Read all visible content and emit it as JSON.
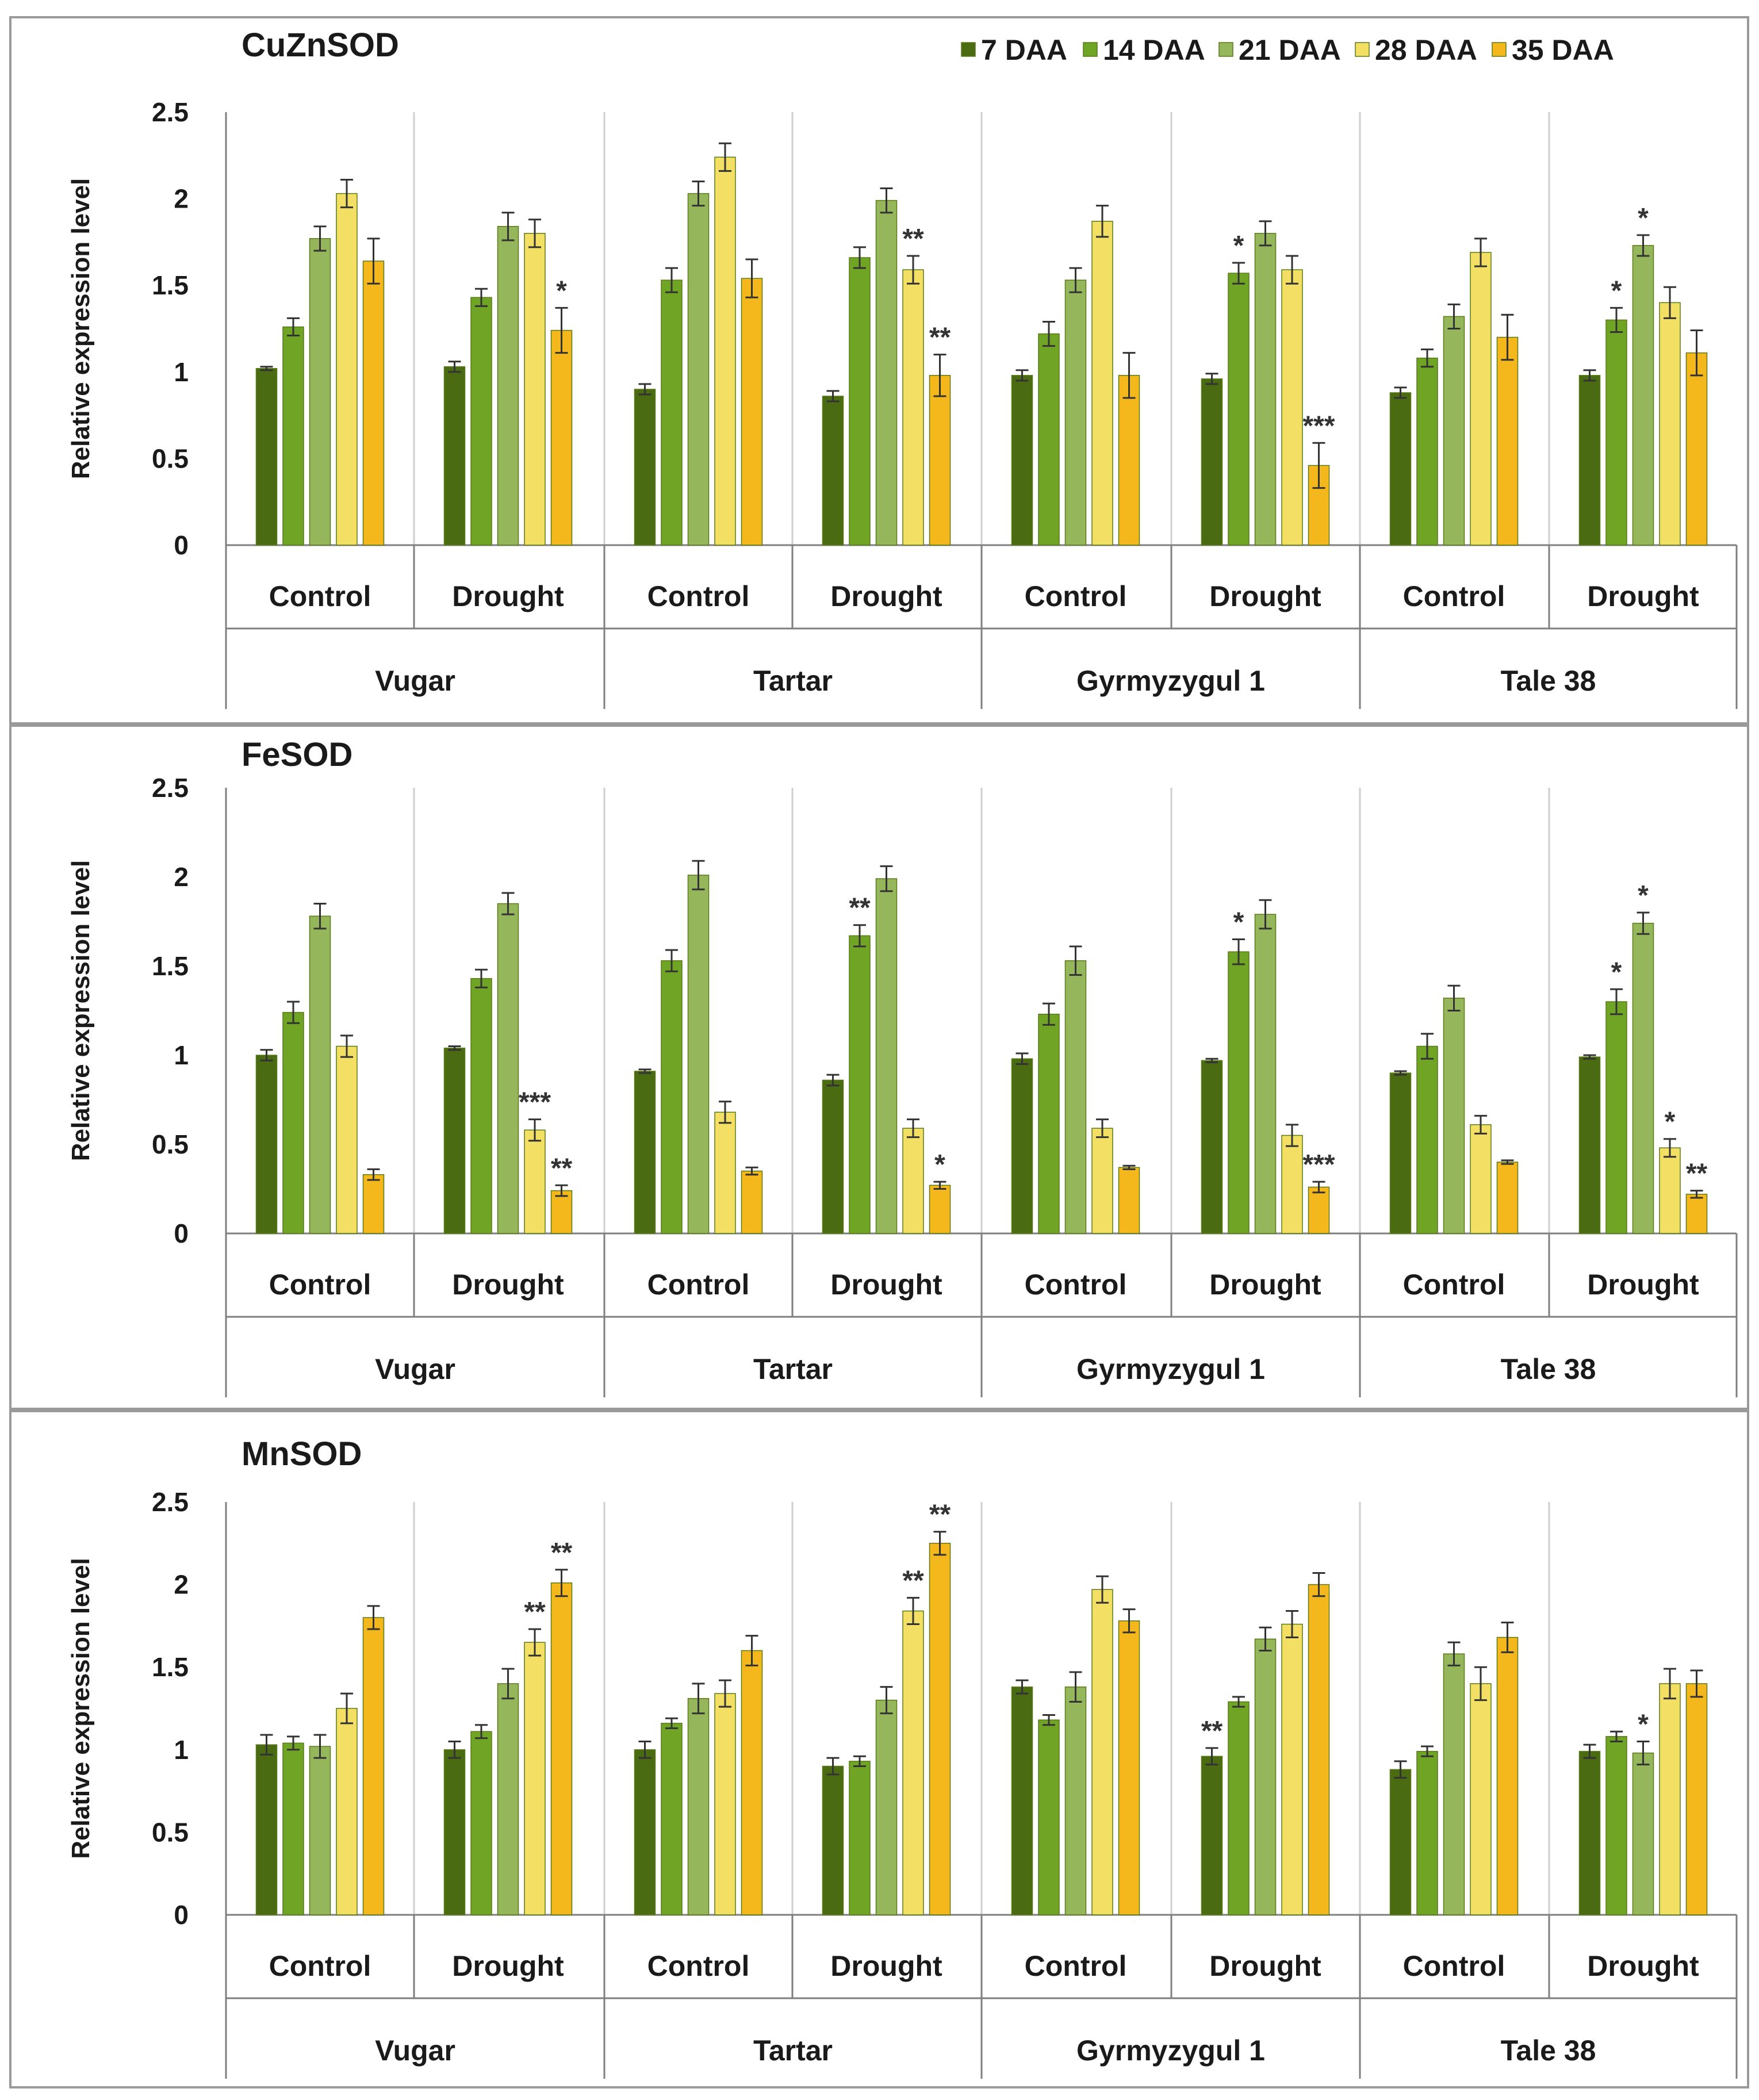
{
  "legend": [
    {
      "label": "7 DAA",
      "color": "#4a6b12"
    },
    {
      "label": "14 DAA",
      "color": "#70a424"
    },
    {
      "label": "21 DAA",
      "color": "#95b65a"
    },
    {
      "label": "28 DAA",
      "color": "#f2df63"
    },
    {
      "label": "35 DAA",
      "color": "#f4b81c"
    }
  ],
  "chart_data": [
    {
      "type": "bar",
      "title": "CuZnSOD",
      "ylabel": "Relative expression level",
      "ylim": [
        0,
        2.5
      ],
      "yticks": [
        "0",
        "0.5",
        "1",
        "1.5",
        "2",
        "2.5"
      ],
      "cultivars": [
        "Vugar",
        "Tartar",
        "Gyrmyzygul 1",
        "Tale 38"
      ],
      "conditions": [
        "Control",
        "Drought"
      ],
      "series_names": [
        "7 DAA",
        "14 DAA",
        "21 DAA",
        "28 DAA",
        "35 DAA"
      ],
      "groups": [
        {
          "cultivar": "Vugar",
          "condition": "Control",
          "values": [
            1.02,
            1.26,
            1.77,
            2.03,
            1.64
          ],
          "errors": [
            0.01,
            0.05,
            0.07,
            0.08,
            0.13
          ],
          "sig": [
            "",
            "",
            "",
            "",
            ""
          ]
        },
        {
          "cultivar": "Vugar",
          "condition": "Drought",
          "values": [
            1.03,
            1.43,
            1.84,
            1.8,
            1.24
          ],
          "errors": [
            0.03,
            0.05,
            0.08,
            0.08,
            0.13
          ],
          "sig": [
            "",
            "",
            "",
            "",
            "*"
          ]
        },
        {
          "cultivar": "Tartar",
          "condition": "Control",
          "values": [
            0.9,
            1.53,
            2.03,
            2.24,
            1.54
          ],
          "errors": [
            0.03,
            0.07,
            0.07,
            0.08,
            0.11
          ],
          "sig": [
            "",
            "",
            "",
            "",
            ""
          ]
        },
        {
          "cultivar": "Tartar",
          "condition": "Drought",
          "values": [
            0.86,
            1.66,
            1.99,
            1.59,
            0.98
          ],
          "errors": [
            0.03,
            0.06,
            0.07,
            0.08,
            0.12
          ],
          "sig": [
            "",
            "",
            "",
            "**",
            "**"
          ]
        },
        {
          "cultivar": "Gyrmyzygul 1",
          "condition": "Control",
          "values": [
            0.98,
            1.22,
            1.53,
            1.87,
            0.98
          ],
          "errors": [
            0.03,
            0.07,
            0.07,
            0.09,
            0.13
          ],
          "sig": [
            "",
            "",
            "",
            "",
            ""
          ]
        },
        {
          "cultivar": "Gyrmyzygul 1",
          "condition": "Drought",
          "values": [
            0.96,
            1.57,
            1.8,
            1.59,
            0.46
          ],
          "errors": [
            0.03,
            0.06,
            0.07,
            0.08,
            0.13
          ],
          "sig": [
            "",
            "*",
            "",
            "",
            "***"
          ]
        },
        {
          "cultivar": "Tale 38",
          "condition": "Control",
          "values": [
            0.88,
            1.08,
            1.32,
            1.69,
            1.2
          ],
          "errors": [
            0.03,
            0.05,
            0.07,
            0.08,
            0.13
          ],
          "sig": [
            "",
            "",
            "",
            "",
            ""
          ]
        },
        {
          "cultivar": "Tale 38",
          "condition": "Drought",
          "values": [
            0.98,
            1.3,
            1.73,
            1.4,
            1.11
          ],
          "errors": [
            0.03,
            0.07,
            0.06,
            0.09,
            0.13
          ],
          "sig": [
            "",
            "*",
            "*",
            "",
            ""
          ]
        }
      ]
    },
    {
      "type": "bar",
      "title": "FeSOD",
      "ylabel": "Relative expression level",
      "ylim": [
        0,
        2.5
      ],
      "yticks": [
        "0",
        "0.5",
        "1",
        "1.5",
        "2",
        "2.5"
      ],
      "cultivars": [
        "Vugar",
        "Tartar",
        "Gyrmyzygul 1",
        "Tale 38"
      ],
      "conditions": [
        "Control",
        "Drought"
      ],
      "series_names": [
        "7 DAA",
        "14 DAA",
        "21 DAA",
        "28 DAA",
        "35 DAA"
      ],
      "groups": [
        {
          "cultivar": "Vugar",
          "condition": "Control",
          "values": [
            1.0,
            1.24,
            1.78,
            1.05,
            0.33
          ],
          "errors": [
            0.03,
            0.06,
            0.07,
            0.06,
            0.03
          ],
          "sig": [
            "",
            "",
            "",
            "",
            ""
          ]
        },
        {
          "cultivar": "Vugar",
          "condition": "Drought",
          "values": [
            1.04,
            1.43,
            1.85,
            0.58,
            0.24
          ],
          "errors": [
            0.01,
            0.05,
            0.06,
            0.06,
            0.03
          ],
          "sig": [
            "",
            "",
            "",
            "***",
            "**"
          ]
        },
        {
          "cultivar": "Tartar",
          "condition": "Control",
          "values": [
            0.91,
            1.53,
            2.01,
            0.68,
            0.35
          ],
          "errors": [
            0.01,
            0.06,
            0.08,
            0.06,
            0.02
          ],
          "sig": [
            "",
            "",
            "",
            "",
            ""
          ]
        },
        {
          "cultivar": "Tartar",
          "condition": "Drought",
          "values": [
            0.86,
            1.67,
            1.99,
            0.59,
            0.27
          ],
          "errors": [
            0.03,
            0.06,
            0.07,
            0.05,
            0.02
          ],
          "sig": [
            "",
            "**",
            "",
            "",
            "*"
          ]
        },
        {
          "cultivar": "Gyrmyzygul 1",
          "condition": "Control",
          "values": [
            0.98,
            1.23,
            1.53,
            0.59,
            0.37
          ],
          "errors": [
            0.03,
            0.06,
            0.08,
            0.05,
            0.01
          ],
          "sig": [
            "",
            "",
            "",
            "",
            ""
          ]
        },
        {
          "cultivar": "Gyrmyzygul 1",
          "condition": "Drought",
          "values": [
            0.97,
            1.58,
            1.79,
            0.55,
            0.26
          ],
          "errors": [
            0.01,
            0.07,
            0.08,
            0.06,
            0.03
          ],
          "sig": [
            "",
            "*",
            "",
            "",
            "***"
          ]
        },
        {
          "cultivar": "Tale 38",
          "condition": "Control",
          "values": [
            0.9,
            1.05,
            1.32,
            0.61,
            0.4
          ],
          "errors": [
            0.01,
            0.07,
            0.07,
            0.05,
            0.01
          ],
          "sig": [
            "",
            "",
            "",
            "",
            ""
          ]
        },
        {
          "cultivar": "Tale 38",
          "condition": "Drought",
          "values": [
            0.99,
            1.3,
            1.74,
            0.48,
            0.22
          ],
          "errors": [
            0.01,
            0.07,
            0.06,
            0.05,
            0.02
          ],
          "sig": [
            "",
            "*",
            "*",
            "*",
            "**"
          ]
        }
      ]
    },
    {
      "type": "bar",
      "title": "MnSOD",
      "ylabel": "Relative expression level",
      "ylim": [
        0,
        2.5
      ],
      "yticks": [
        "0",
        "0.5",
        "1",
        "1.5",
        "2",
        "2.5"
      ],
      "cultivars": [
        "Vugar",
        "Tartar",
        "Gyrmyzygul 1",
        "Tale 38"
      ],
      "conditions": [
        "Control",
        "Drought"
      ],
      "series_names": [
        "7 DAA",
        "14 DAA",
        "21 DAA",
        "28 DAA",
        "35 DAA"
      ],
      "groups": [
        {
          "cultivar": "Vugar",
          "condition": "Control",
          "values": [
            1.03,
            1.04,
            1.02,
            1.25,
            1.8
          ],
          "errors": [
            0.06,
            0.04,
            0.07,
            0.09,
            0.07
          ],
          "sig": [
            "",
            "",
            "",
            "",
            ""
          ]
        },
        {
          "cultivar": "Vugar",
          "condition": "Drought",
          "values": [
            1.0,
            1.11,
            1.4,
            1.65,
            2.01
          ],
          "errors": [
            0.05,
            0.04,
            0.09,
            0.08,
            0.08
          ],
          "sig": [
            "",
            "",
            "",
            "**",
            "**"
          ]
        },
        {
          "cultivar": "Tartar",
          "condition": "Control",
          "values": [
            1.0,
            1.16,
            1.31,
            1.34,
            1.6
          ],
          "errors": [
            0.05,
            0.03,
            0.09,
            0.08,
            0.09
          ],
          "sig": [
            "",
            "",
            "",
            "",
            ""
          ]
        },
        {
          "cultivar": "Tartar",
          "condition": "Drought",
          "values": [
            0.9,
            0.93,
            1.3,
            1.84,
            2.25
          ],
          "errors": [
            0.05,
            0.03,
            0.08,
            0.08,
            0.07
          ],
          "sig": [
            "",
            "",
            "",
            "**",
            "**"
          ]
        },
        {
          "cultivar": "Gyrmyzygul 1",
          "condition": "Control",
          "values": [
            1.38,
            1.18,
            1.38,
            1.97,
            1.78
          ],
          "errors": [
            0.04,
            0.03,
            0.09,
            0.08,
            0.07
          ],
          "sig": [
            "",
            "",
            "",
            "",
            ""
          ]
        },
        {
          "cultivar": "Gyrmyzygul 1",
          "condition": "Drought",
          "values": [
            0.96,
            1.29,
            1.67,
            1.76,
            2.0
          ],
          "errors": [
            0.05,
            0.03,
            0.07,
            0.08,
            0.07
          ],
          "sig": [
            "**",
            "",
            "",
            "",
            ""
          ]
        },
        {
          "cultivar": "Tale 38",
          "condition": "Control",
          "values": [
            0.88,
            0.99,
            1.58,
            1.4,
            1.68
          ],
          "errors": [
            0.05,
            0.03,
            0.07,
            0.1,
            0.09
          ],
          "sig": [
            "",
            "",
            "",
            "",
            ""
          ]
        },
        {
          "cultivar": "Tale 38",
          "condition": "Drought",
          "values": [
            0.99,
            1.08,
            0.98,
            1.4,
            1.4
          ],
          "errors": [
            0.04,
            0.03,
            0.07,
            0.09,
            0.08
          ],
          "sig": [
            "",
            "",
            "*",
            "",
            ""
          ]
        }
      ]
    }
  ]
}
